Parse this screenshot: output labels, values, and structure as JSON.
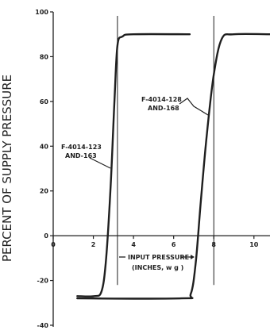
{
  "chart_data": {
    "type": "line",
    "xlabel": "",
    "ylabel": "PERCENT OF SUPPLY PRESSURE",
    "xlim": [
      0,
      10.8
    ],
    "ylim": [
      -40,
      100
    ],
    "x_ticks": [
      0,
      2,
      4,
      6,
      8,
      10
    ],
    "x_tick_labels": [
      "0",
      "2",
      "4",
      "6",
      "8",
      "10"
    ],
    "y_ticks": [
      -40,
      -20,
      0,
      20,
      40,
      60,
      80,
      100
    ],
    "y_tick_labels": [
      "-40",
      "-20",
      "0",
      "20",
      "40",
      "60",
      "80",
      "100"
    ],
    "grid": false,
    "legend": "none",
    "series": [
      {
        "name": "F-4014-123 AND-163",
        "points": [
          [
            1.2,
            -27
          ],
          [
            2.05,
            -27
          ],
          [
            2.4,
            -25
          ],
          [
            2.62,
            -12
          ],
          [
            2.85,
            20
          ],
          [
            3.05,
            60
          ],
          [
            3.2,
            85
          ],
          [
            3.45,
            89
          ],
          [
            4.0,
            90
          ],
          [
            6.8,
            90
          ]
        ]
      },
      {
        "name": "F-4014-128 AND-168",
        "points": [
          [
            1.2,
            -28
          ],
          [
            6.4,
            -28
          ],
          [
            6.85,
            -26
          ],
          [
            7.1,
            -12
          ],
          [
            7.35,
            15
          ],
          [
            7.65,
            45
          ],
          [
            8.0,
            72
          ],
          [
            8.4,
            88
          ],
          [
            9.0,
            90
          ],
          [
            10.8,
            90
          ]
        ]
      }
    ],
    "reference_lines_x": [
      3.2,
      8.0
    ],
    "annotations": {
      "series1_line1": "F-4014-123",
      "series1_line2": "AND-163",
      "series2_line1": "F-4014-128",
      "series2_line2": "AND-168",
      "axis_note_line1": "INPUT PRESSURE",
      "axis_note_line2": "(INCHES, w g )"
    }
  }
}
